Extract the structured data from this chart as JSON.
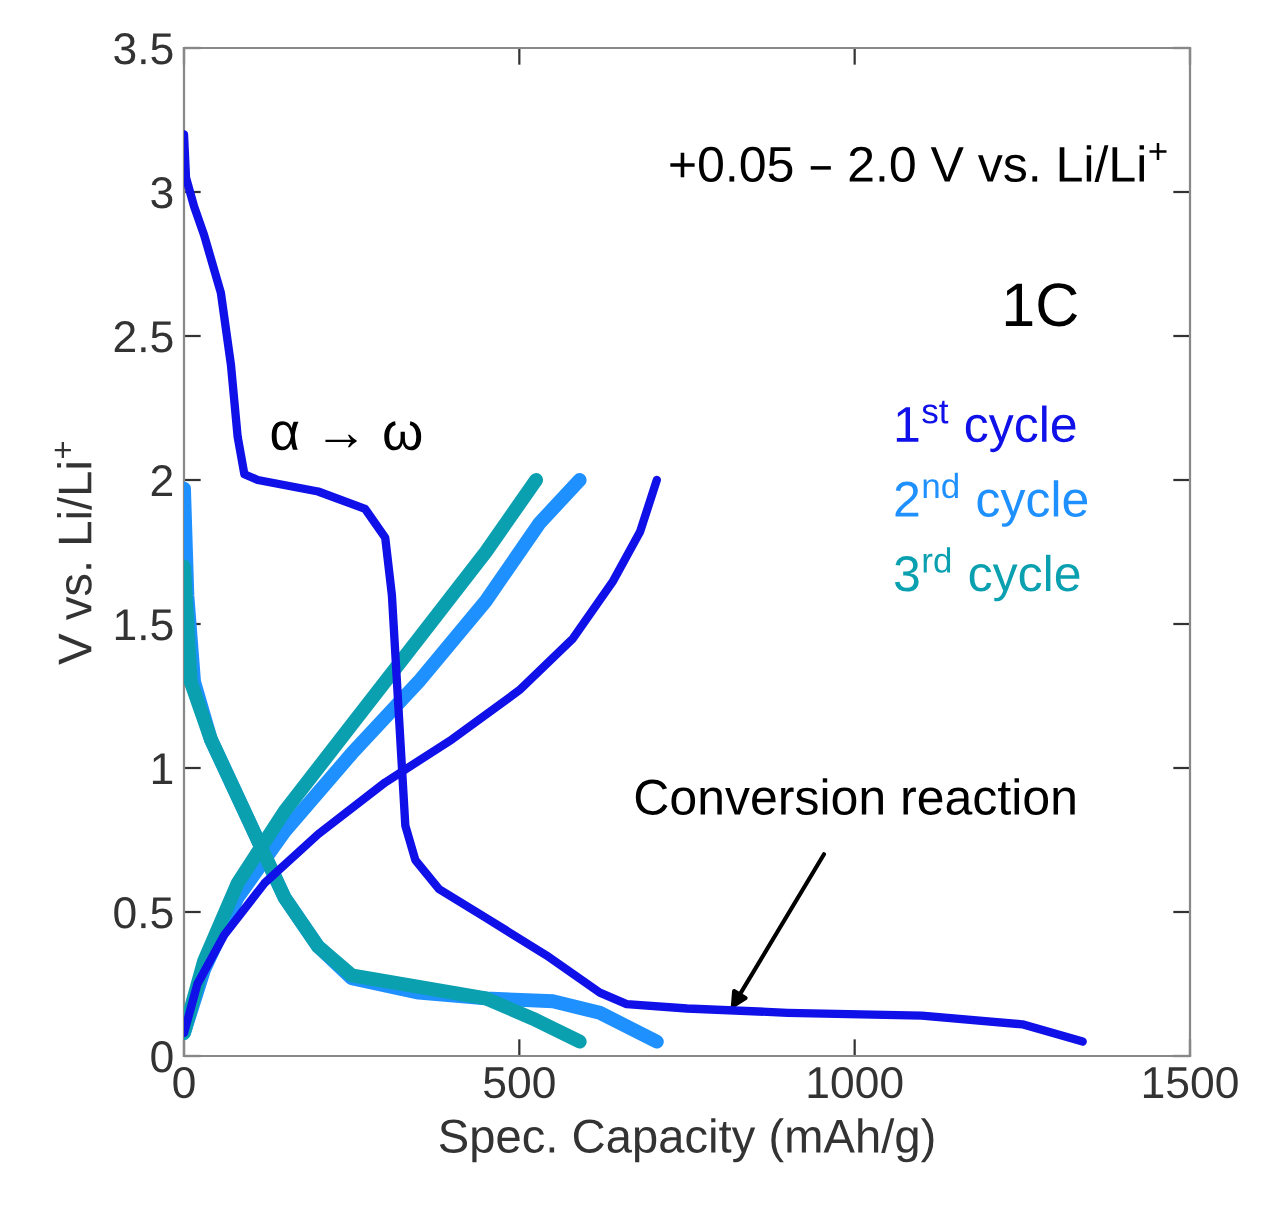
{
  "chart_data": {
    "type": "line",
    "xlabel": "Spec. Capacity (mAh/g)",
    "ylabel": "V vs. Li/Li$^{+}$",
    "xlim": [
      0,
      1500
    ],
    "xticks": [
      0,
      500,
      1000,
      1500
    ],
    "ylim": [
      0,
      3.5
    ],
    "yticks": [
      0,
      0.5,
      1,
      1.5,
      2,
      2.5,
      3,
      3.5
    ],
    "grid": false,
    "legend": "right",
    "marker": "none",
    "line_style": "solid",
    "series": [
      {
        "name": "1$^{st}$ cycle",
        "color": "#1010e8",
        "x": [
          0,
          3,
          15,
          30,
          55,
          70,
          80,
          90,
          110,
          200,
          270,
          300,
          310,
          320,
          325,
          330,
          345,
          380,
          450,
          540,
          620,
          660,
          750,
          900,
          1100,
          1250,
          1340
        ],
        "values": [
          3.2,
          3.05,
          2.95,
          2.85,
          2.65,
          2.4,
          2.15,
          2.02,
          2.0,
          1.96,
          1.9,
          1.8,
          1.6,
          1.2,
          1.0,
          0.8,
          0.68,
          0.58,
          0.48,
          0.35,
          0.22,
          0.18,
          0.165,
          0.15,
          0.14,
          0.11,
          0.05
        ]
      },
      {
        "color": "#1010e8",
        "x": [
          0,
          20,
          60,
          120,
          200,
          300,
          400,
          500,
          580,
          640,
          680,
          705
        ],
        "values": [
          0.08,
          0.25,
          0.42,
          0.6,
          0.77,
          0.95,
          1.1,
          1.27,
          1.45,
          1.65,
          1.82,
          2.0
        ]
      },
      {
        "name": "2$^{nd}$ cycle",
        "color": "#1e90ff",
        "x": [
          0,
          5,
          15,
          40,
          100,
          150,
          200,
          250,
          350,
          450,
          550,
          620,
          705
        ],
        "values": [
          1.97,
          1.6,
          1.3,
          1.1,
          0.8,
          0.55,
          0.38,
          0.27,
          0.22,
          0.2,
          0.19,
          0.15,
          0.05
        ]
      },
      {
        "color": "#1e90ff",
        "x": [
          0,
          30,
          80,
          150,
          250,
          350,
          450,
          530,
          590
        ],
        "values": [
          0.08,
          0.3,
          0.55,
          0.78,
          1.05,
          1.3,
          1.58,
          1.85,
          2.0
        ]
      },
      {
        "name": "3$^{rd}$ cycle",
        "color": "#0aa0b0",
        "x": [
          0,
          10,
          40,
          100,
          150,
          200,
          250,
          350,
          450,
          520,
          590
        ],
        "values": [
          1.7,
          1.3,
          1.1,
          0.8,
          0.55,
          0.38,
          0.28,
          0.24,
          0.2,
          0.13,
          0.05
        ]
      },
      {
        "color": "#0aa0b0",
        "x": [
          0,
          30,
          80,
          150,
          250,
          350,
          450,
          525
        ],
        "values": [
          0.08,
          0.33,
          0.6,
          0.85,
          1.15,
          1.45,
          1.75,
          2.0
        ]
      }
    ],
    "annotations": [
      "+0.05 – 2.0 V vs. Li/Li$^{+}$",
      "1C",
      "α → ω",
      {
        "text": "Conversion reaction",
        "x": 815,
        "y": 0.16
      }
    ]
  }
}
